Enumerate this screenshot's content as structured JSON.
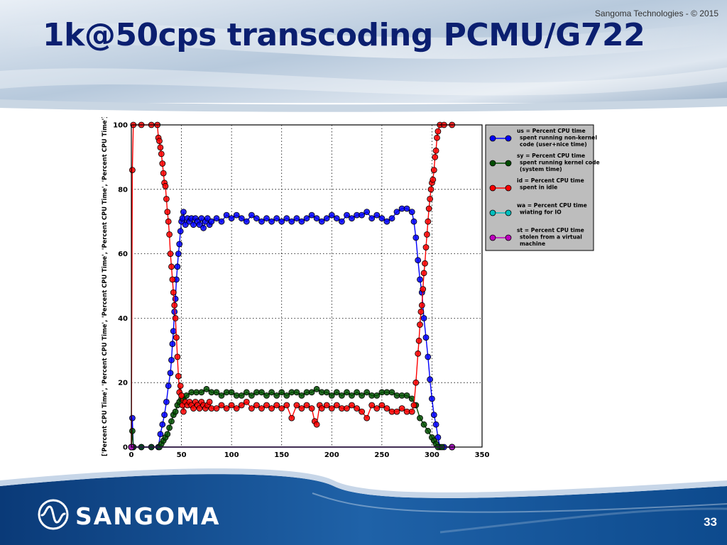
{
  "slide": {
    "title": "1k@50cps transcoding PCMU/G722",
    "copyright": "Sangoma Technologies - © 2015",
    "page_number": "33",
    "brand": "SANGOMA",
    "logo_icon": "sangoma-wave-logo-icon"
  },
  "colors": {
    "title": "#0b1f70",
    "header_gradient": [
      "#7b9bbd",
      "#e7eef6"
    ],
    "footer_gradient": [
      "#0b3f7e",
      "#2a7bc4"
    ],
    "us": "#0000ff",
    "sy": "#004d00",
    "id": "#ff0000",
    "wa": "#00bfbf",
    "st": "#bf00bf",
    "legend_bg": "#bdbdbd"
  },
  "chart_data": {
    "type": "line",
    "ylabel": "['Percent CPU Time', 'Percent CPU Time', 'Percent CPU Time', 'Percent CPU Time', 'Percent CPU Time']",
    "xlabel": "",
    "xlim": [
      0,
      350
    ],
    "ylim": [
      0,
      100
    ],
    "xticks": [
      0,
      50,
      100,
      150,
      200,
      250,
      300,
      350
    ],
    "yticks": [
      0,
      20,
      40,
      60,
      80,
      100
    ],
    "grid": true,
    "legend_position": "right",
    "series": [
      {
        "name": "us = Percent CPU time spent running non-kernel code (user+nice time)",
        "color": "#0000ff",
        "points": [
          [
            0,
            0
          ],
          [
            1,
            9
          ],
          [
            2,
            0
          ],
          [
            10,
            0
          ],
          [
            20,
            0
          ],
          [
            27,
            0
          ],
          [
            29,
            4
          ],
          [
            31,
            7
          ],
          [
            33,
            10
          ],
          [
            35,
            14
          ],
          [
            37,
            19
          ],
          [
            39,
            23
          ],
          [
            40,
            27
          ],
          [
            41,
            32
          ],
          [
            42,
            36
          ],
          [
            43,
            42
          ],
          [
            44,
            46
          ],
          [
            45,
            52
          ],
          [
            46,
            56
          ],
          [
            47,
            60
          ],
          [
            48,
            63
          ],
          [
            49,
            67
          ],
          [
            50,
            70
          ],
          [
            51,
            71
          ],
          [
            52,
            73
          ],
          [
            54,
            69
          ],
          [
            56,
            71
          ],
          [
            58,
            70
          ],
          [
            60,
            71
          ],
          [
            62,
            69
          ],
          [
            64,
            71
          ],
          [
            66,
            70
          ],
          [
            68,
            69
          ],
          [
            70,
            71
          ],
          [
            72,
            68
          ],
          [
            74,
            70
          ],
          [
            76,
            71
          ],
          [
            78,
            69
          ],
          [
            80,
            70
          ],
          [
            85,
            71
          ],
          [
            90,
            70
          ],
          [
            95,
            72
          ],
          [
            100,
            71
          ],
          [
            105,
            72
          ],
          [
            110,
            71
          ],
          [
            115,
            70
          ],
          [
            120,
            72
          ],
          [
            125,
            71
          ],
          [
            130,
            70
          ],
          [
            135,
            71
          ],
          [
            140,
            70
          ],
          [
            145,
            71
          ],
          [
            150,
            70
          ],
          [
            155,
            71
          ],
          [
            160,
            70
          ],
          [
            165,
            71
          ],
          [
            170,
            70
          ],
          [
            175,
            71
          ],
          [
            180,
            72
          ],
          [
            185,
            71
          ],
          [
            190,
            70
          ],
          [
            195,
            71
          ],
          [
            200,
            72
          ],
          [
            205,
            71
          ],
          [
            210,
            70
          ],
          [
            215,
            72
          ],
          [
            220,
            71
          ],
          [
            225,
            72
          ],
          [
            230,
            72
          ],
          [
            235,
            73
          ],
          [
            240,
            71
          ],
          [
            245,
            72
          ],
          [
            250,
            71
          ],
          [
            255,
            70
          ],
          [
            260,
            71
          ],
          [
            265,
            73
          ],
          [
            270,
            74
          ],
          [
            275,
            74
          ],
          [
            280,
            73
          ],
          [
            282,
            70
          ],
          [
            284,
            65
          ],
          [
            286,
            58
          ],
          [
            288,
            52
          ],
          [
            290,
            48
          ],
          [
            292,
            40
          ],
          [
            294,
            34
          ],
          [
            296,
            28
          ],
          [
            298,
            21
          ],
          [
            300,
            15
          ],
          [
            302,
            10
          ],
          [
            304,
            7
          ],
          [
            306,
            3
          ],
          [
            308,
            0
          ],
          [
            312,
            0
          ],
          [
            320,
            0
          ]
        ]
      },
      {
        "name": "sy = Percent CPU time spent running kernel code (system time)",
        "color": "#004d00",
        "points": [
          [
            0,
            0
          ],
          [
            1,
            5
          ],
          [
            2,
            0
          ],
          [
            10,
            0
          ],
          [
            20,
            0
          ],
          [
            28,
            0
          ],
          [
            30,
            1
          ],
          [
            32,
            2
          ],
          [
            34,
            3
          ],
          [
            36,
            4
          ],
          [
            38,
            6
          ],
          [
            40,
            8
          ],
          [
            42,
            10
          ],
          [
            44,
            11
          ],
          [
            46,
            13
          ],
          [
            48,
            14
          ],
          [
            50,
            15
          ],
          [
            52,
            15
          ],
          [
            55,
            16
          ],
          [
            60,
            17
          ],
          [
            65,
            17
          ],
          [
            70,
            17
          ],
          [
            75,
            18
          ],
          [
            80,
            17
          ],
          [
            85,
            17
          ],
          [
            90,
            16
          ],
          [
            95,
            17
          ],
          [
            100,
            17
          ],
          [
            105,
            16
          ],
          [
            110,
            16
          ],
          [
            115,
            17
          ],
          [
            120,
            16
          ],
          [
            125,
            17
          ],
          [
            130,
            17
          ],
          [
            135,
            16
          ],
          [
            140,
            17
          ],
          [
            145,
            16
          ],
          [
            150,
            17
          ],
          [
            155,
            16
          ],
          [
            160,
            17
          ],
          [
            165,
            17
          ],
          [
            170,
            16
          ],
          [
            175,
            17
          ],
          [
            180,
            17
          ],
          [
            185,
            18
          ],
          [
            190,
            17
          ],
          [
            195,
            17
          ],
          [
            200,
            16
          ],
          [
            205,
            17
          ],
          [
            210,
            16
          ],
          [
            215,
            17
          ],
          [
            220,
            16
          ],
          [
            225,
            17
          ],
          [
            230,
            16
          ],
          [
            235,
            17
          ],
          [
            240,
            16
          ],
          [
            245,
            16
          ],
          [
            250,
            17
          ],
          [
            255,
            17
          ],
          [
            260,
            17
          ],
          [
            265,
            16
          ],
          [
            270,
            16
          ],
          [
            275,
            16
          ],
          [
            280,
            15
          ],
          [
            284,
            13
          ],
          [
            288,
            9
          ],
          [
            292,
            7
          ],
          [
            296,
            5
          ],
          [
            300,
            3
          ],
          [
            302,
            2
          ],
          [
            304,
            1
          ],
          [
            306,
            0
          ],
          [
            310,
            0
          ],
          [
            320,
            0
          ]
        ]
      },
      {
        "name": "id = Percent CPU time spent in idle",
        "color": "#ff0000",
        "points": [
          [
            0,
            0
          ],
          [
            1,
            86
          ],
          [
            2,
            100
          ],
          [
            10,
            100
          ],
          [
            20,
            100
          ],
          [
            26,
            100
          ],
          [
            27,
            96
          ],
          [
            28,
            95
          ],
          [
            29,
            93
          ],
          [
            30,
            91
          ],
          [
            31,
            88
          ],
          [
            32,
            85
          ],
          [
            33,
            82
          ],
          [
            34,
            81
          ],
          [
            35,
            77
          ],
          [
            36,
            73
          ],
          [
            37,
            70
          ],
          [
            38,
            66
          ],
          [
            39,
            60
          ],
          [
            40,
            56
          ],
          [
            41,
            52
          ],
          [
            42,
            48
          ],
          [
            43,
            44
          ],
          [
            44,
            40
          ],
          [
            45,
            34
          ],
          [
            46,
            28
          ],
          [
            47,
            22
          ],
          [
            48,
            17
          ],
          [
            49,
            19
          ],
          [
            50,
            16
          ],
          [
            51,
            13
          ],
          [
            52,
            11
          ],
          [
            54,
            14
          ],
          [
            56,
            13
          ],
          [
            58,
            14
          ],
          [
            60,
            13
          ],
          [
            62,
            12
          ],
          [
            64,
            14
          ],
          [
            66,
            13
          ],
          [
            68,
            12
          ],
          [
            70,
            14
          ],
          [
            72,
            13
          ],
          [
            74,
            12
          ],
          [
            76,
            13
          ],
          [
            78,
            14
          ],
          [
            80,
            12
          ],
          [
            85,
            12
          ],
          [
            90,
            13
          ],
          [
            95,
            12
          ],
          [
            100,
            13
          ],
          [
            105,
            12
          ],
          [
            110,
            13
          ],
          [
            115,
            14
          ],
          [
            120,
            12
          ],
          [
            125,
            13
          ],
          [
            130,
            12
          ],
          [
            135,
            13
          ],
          [
            140,
            12
          ],
          [
            145,
            13
          ],
          [
            150,
            12
          ],
          [
            155,
            13
          ],
          [
            160,
            9
          ],
          [
            165,
            13
          ],
          [
            170,
            12
          ],
          [
            175,
            13
          ],
          [
            180,
            12
          ],
          [
            183,
            8
          ],
          [
            185,
            7
          ],
          [
            188,
            13
          ],
          [
            190,
            12
          ],
          [
            195,
            13
          ],
          [
            200,
            12
          ],
          [
            205,
            13
          ],
          [
            210,
            12
          ],
          [
            215,
            12
          ],
          [
            220,
            13
          ],
          [
            225,
            12
          ],
          [
            230,
            11
          ],
          [
            235,
            9
          ],
          [
            240,
            13
          ],
          [
            245,
            12
          ],
          [
            250,
            13
          ],
          [
            255,
            12
          ],
          [
            260,
            11
          ],
          [
            265,
            11
          ],
          [
            270,
            12
          ],
          [
            275,
            11
          ],
          [
            280,
            11
          ],
          [
            282,
            13
          ],
          [
            284,
            20
          ],
          [
            286,
            29
          ],
          [
            287,
            33
          ],
          [
            288,
            38
          ],
          [
            289,
            42
          ],
          [
            290,
            44
          ],
          [
            291,
            49
          ],
          [
            292,
            54
          ],
          [
            293,
            57
          ],
          [
            294,
            62
          ],
          [
            295,
            66
          ],
          [
            296,
            70
          ],
          [
            297,
            74
          ],
          [
            298,
            77
          ],
          [
            299,
            80
          ],
          [
            300,
            82
          ],
          [
            301,
            83
          ],
          [
            302,
            86
          ],
          [
            303,
            90
          ],
          [
            304,
            92
          ],
          [
            305,
            96
          ],
          [
            306,
            98
          ],
          [
            308,
            100
          ],
          [
            312,
            100
          ],
          [
            320,
            100
          ]
        ]
      },
      {
        "name": "wa = Percent CPU time wiating for IO",
        "color": "#00bfbf",
        "points": [
          [
            0,
            0
          ],
          [
            320,
            0
          ]
        ]
      },
      {
        "name": "st = Percent CPU time stolen from a virtual machine",
        "color": "#bf00bf",
        "points": [
          [
            0,
            0
          ],
          [
            320,
            0
          ]
        ]
      }
    ]
  }
}
